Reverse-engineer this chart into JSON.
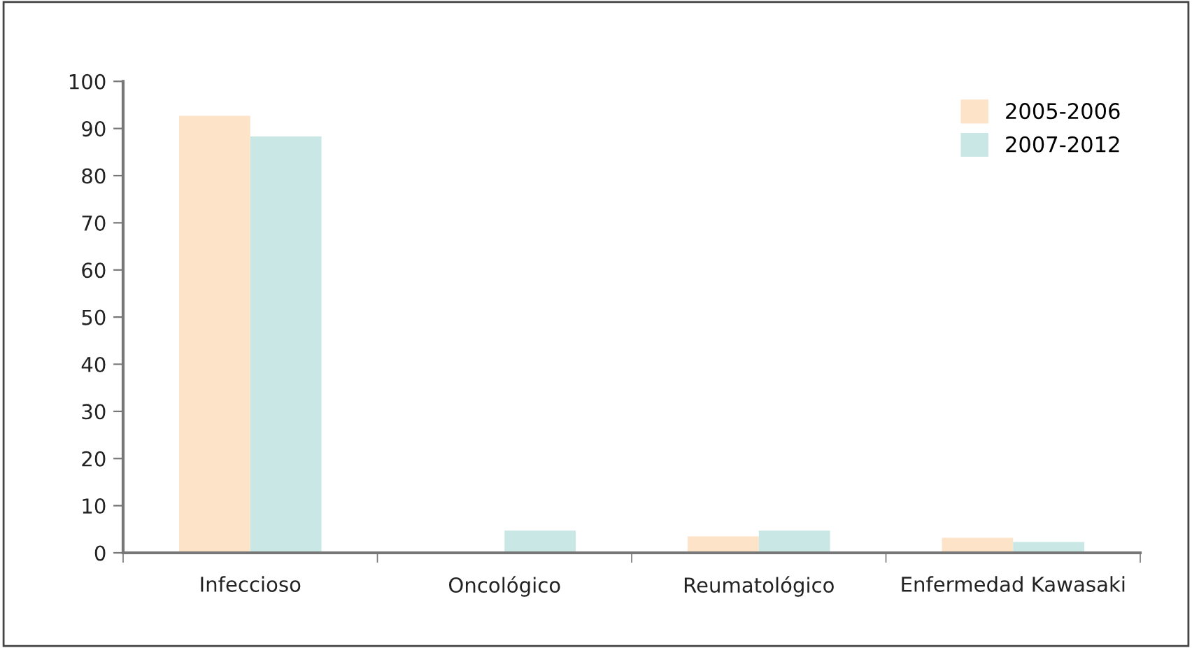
{
  "chart_data": {
    "type": "bar",
    "categories": [
      "Infeccioso",
      "Oncológico",
      "Reumatológico",
      "Enfermedad Kawasaki"
    ],
    "series": [
      {
        "name": "2005-2006",
        "color": "#fde4c9",
        "values": [
          92.7,
          0,
          3.5,
          3.2
        ]
      },
      {
        "name": "2007-2012",
        "color": "#c8e7e5",
        "values": [
          88.3,
          4.7,
          4.7,
          2.3
        ]
      }
    ],
    "ylim": [
      0,
      100
    ],
    "yticks": [
      0,
      10,
      20,
      30,
      40,
      50,
      60,
      70,
      80,
      90,
      100
    ],
    "grid": false,
    "legend": "top right"
  }
}
